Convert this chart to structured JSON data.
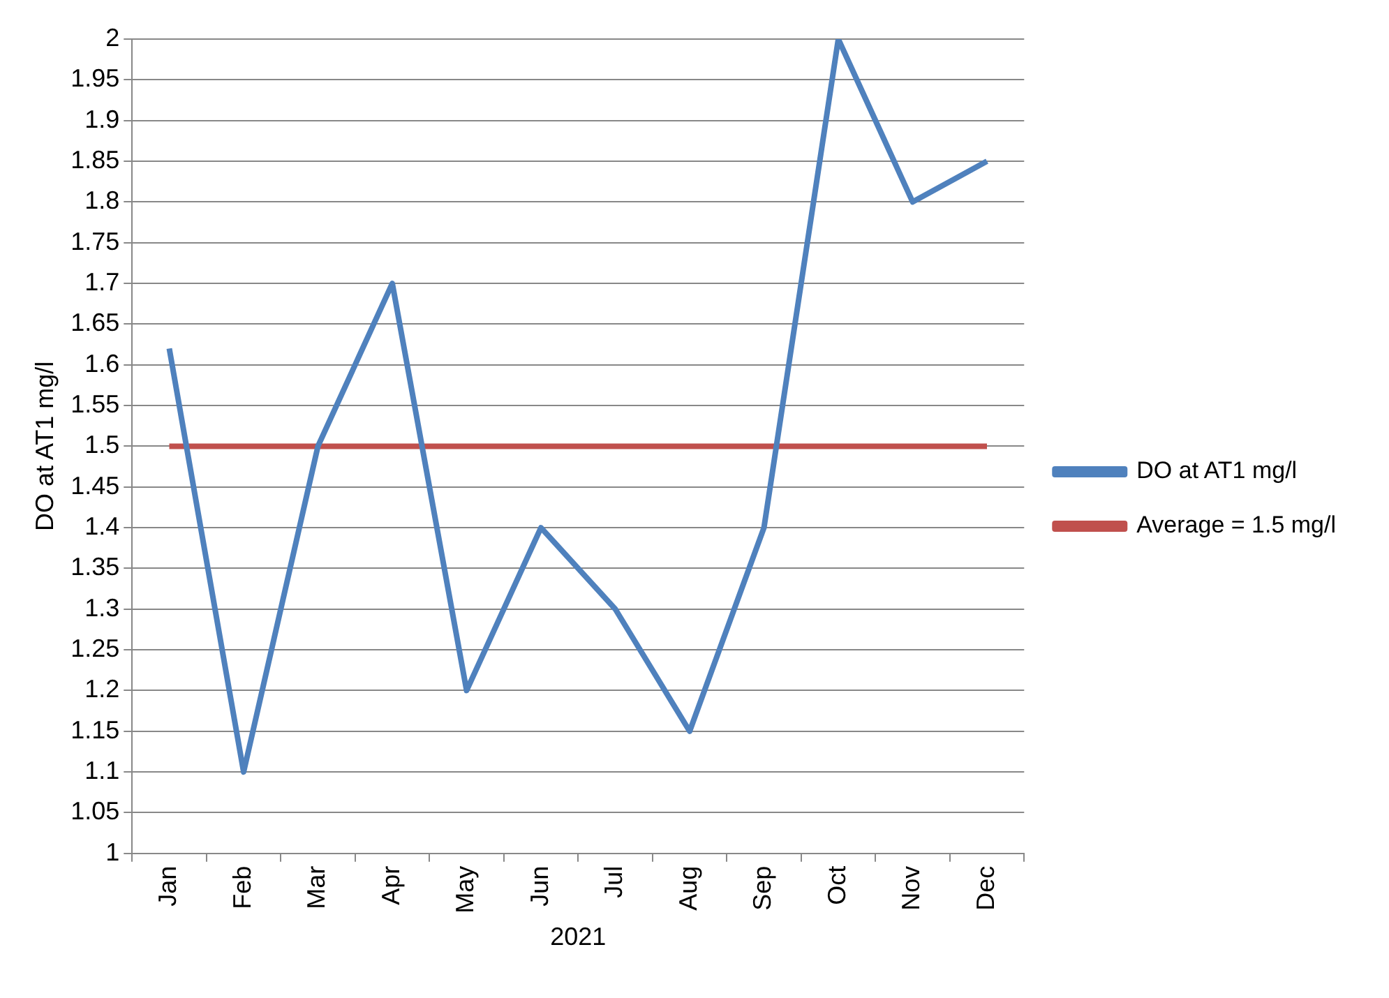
{
  "chart_data": {
    "type": "line",
    "xlabel": "2021",
    "ylabel": "DO at AT1 mg/l",
    "categories": [
      "Jan",
      "Feb",
      "Mar",
      "Apr",
      "May",
      "Jun",
      "Jul",
      "Aug",
      "Sep",
      "Oct",
      "Nov",
      "Dec"
    ],
    "series": [
      {
        "name": "DO at AT1 mg/l",
        "color": "#4f81bd",
        "values": [
          1.62,
          1.1,
          1.5,
          1.7,
          1.2,
          1.4,
          1.3,
          1.15,
          1.4,
          2,
          1.8,
          1.85
        ]
      },
      {
        "name": "Average = 1.5 mg/l",
        "color": "#c0504d",
        "values": [
          1.5,
          1.5,
          1.5,
          1.5,
          1.5,
          1.5,
          1.5,
          1.5,
          1.5,
          1.5,
          1.5,
          1.5
        ]
      }
    ],
    "ylim": [
      1,
      2
    ],
    "yticks": [
      1,
      1.05,
      1.1,
      1.15,
      1.2,
      1.25,
      1.3,
      1.35,
      1.4,
      1.45,
      1.5,
      1.55,
      1.6,
      1.65,
      1.7,
      1.75,
      1.8,
      1.85,
      1.9,
      1.95,
      2
    ],
    "grid": "y",
    "legend": "right",
    "marker": "none",
    "line_style": "solid"
  }
}
